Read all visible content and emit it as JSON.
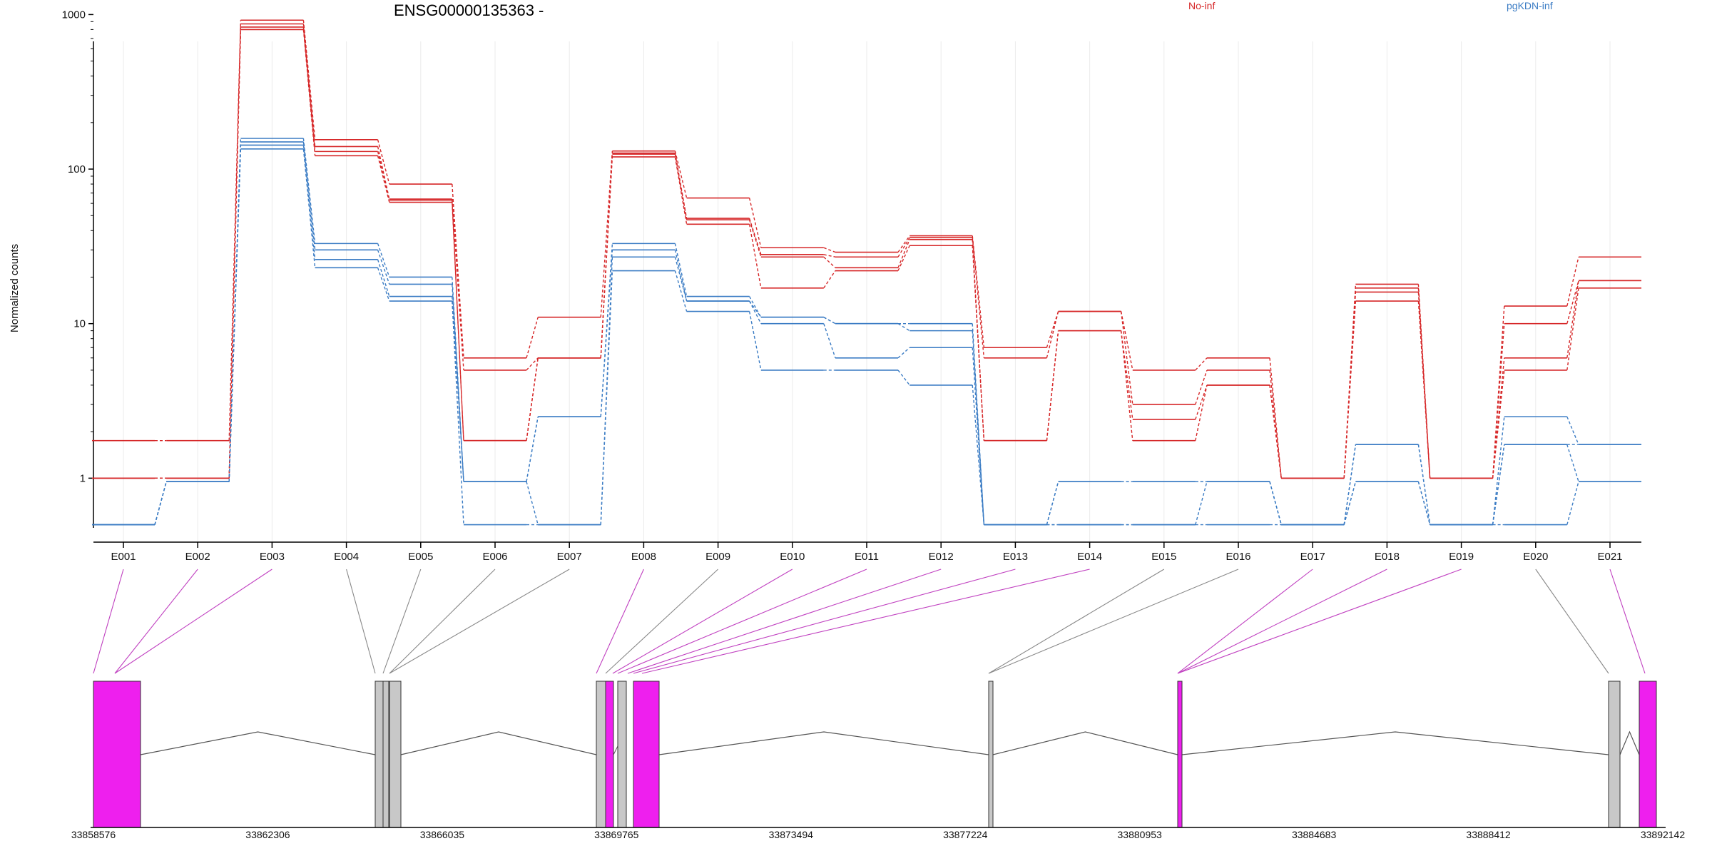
{
  "chart_data": {
    "type": "line",
    "title": "ENSG00000135363 -",
    "ylabel": "Normalized counts",
    "xlabel": "",
    "y_scale": "log",
    "ylim": [
      0.5,
      1000
    ],
    "yticks": [
      1,
      10,
      100,
      1000
    ],
    "ytick_labels": [
      "1",
      "10",
      "100",
      "1000"
    ],
    "grid": "vertical lines at exon ticks",
    "legend_placement": "top",
    "categories": [
      "E001",
      "E002",
      "E003",
      "E004",
      "E005",
      "E006",
      "E007",
      "E008",
      "E009",
      "E010",
      "E011",
      "E012",
      "E013",
      "E014",
      "E015",
      "E016",
      "E017",
      "E018",
      "E019",
      "E020",
      "E021"
    ],
    "groups": [
      {
        "name": "No-inf",
        "color": "#d62728",
        "series": [
          [
            1.75,
            1.75,
            920,
            155,
            80,
            6,
            11,
            131,
            65,
            31,
            29,
            37,
            7,
            12,
            5,
            6,
            1,
            18,
            1,
            13,
            27
          ],
          [
            1,
            1,
            870,
            140,
            64,
            5,
            6,
            127,
            48,
            28,
            27,
            36,
            6,
            12,
            3,
            5,
            1,
            17,
            1,
            10,
            19
          ],
          [
            1,
            1,
            830,
            130,
            63,
            1.75,
            6,
            125,
            47,
            27,
            23,
            35,
            1.75,
            9,
            2.4,
            4,
            1,
            16,
            1,
            6,
            19
          ],
          [
            1,
            1,
            800,
            122,
            61,
            1.75,
            6,
            120,
            44,
            17,
            22,
            32,
            1.75,
            9,
            1.75,
            4,
            1,
            14,
            1,
            5,
            17
          ]
        ]
      },
      {
        "name": "pgKDN-inf",
        "color": "#3b7cc4",
        "series": [
          [
            0.5,
            0.95,
            158,
            33,
            20,
            0.95,
            2.5,
            33,
            15,
            11,
            10,
            10,
            0.5,
            0.95,
            0.95,
            0.95,
            0.5,
            1.65,
            0.5,
            2.5,
            1.65
          ],
          [
            0.5,
            0.95,
            150,
            30,
            18,
            0.95,
            2.5,
            30,
            14,
            11,
            10,
            9,
            0.5,
            0.95,
            0.95,
            0.95,
            0.5,
            1.65,
            0.5,
            1.65,
            1.65
          ],
          [
            0.5,
            0.95,
            143,
            26,
            15,
            0.95,
            0.5,
            27,
            14,
            10,
            6,
            7,
            0.5,
            0.5,
            0.5,
            0.95,
            0.5,
            0.95,
            0.5,
            1.65,
            0.95
          ],
          [
            0.5,
            0.95,
            135,
            23,
            14,
            0.5,
            0.5,
            22,
            12,
            5,
            5,
            4,
            0.5,
            0.5,
            0.5,
            0.5,
            0.5,
            0.95,
            0.5,
            0.5,
            0.95
          ]
        ]
      }
    ],
    "gene_model": {
      "coordinate_range": [
        33858576,
        33892142
      ],
      "axis_labels": [
        "33858576",
        "33862306",
        "33866035",
        "33869765",
        "33873494",
        "33877224",
        "33880953",
        "33884683",
        "33888412",
        "33892142"
      ],
      "exon_highlight_color": "#ee1fee",
      "exon_default_color": "#c8c8c8",
      "highlighted_exons": [
        "E001",
        "E002",
        "E003",
        "E008",
        "E010",
        "E011",
        "E012",
        "E013",
        "E014",
        "E017",
        "E018",
        "E019",
        "E021"
      ]
    }
  }
}
